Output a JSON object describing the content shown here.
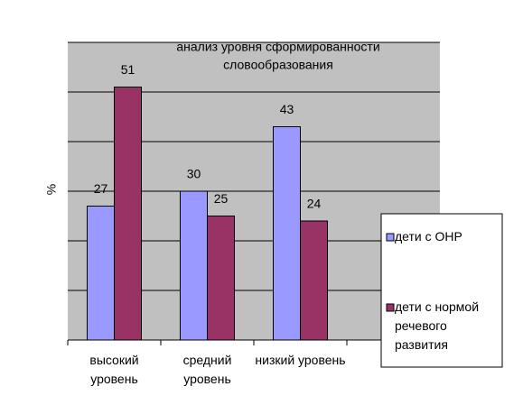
{
  "chart_data": {
    "type": "bar",
    "title": [
      "анализ уровня сформированности",
      "словообразования"
    ],
    "y_label": "%",
    "categories": [
      "высокий уровень",
      "средний уровень",
      "низкий уровень",
      null
    ],
    "series": [
      {
        "name": "дети с ОНР",
        "color": "#9999ff",
        "values": [
          27,
          30,
          43,
          null
        ]
      },
      {
        "name": "дети с нормой речевого развития",
        "color": "#993366",
        "values": [
          51,
          25,
          24,
          null
        ]
      }
    ],
    "ylim": [
      0,
      60
    ],
    "yticks": [
      0,
      10,
      20,
      30,
      40,
      50,
      60
    ],
    "grid": true,
    "legend": "right"
  }
}
